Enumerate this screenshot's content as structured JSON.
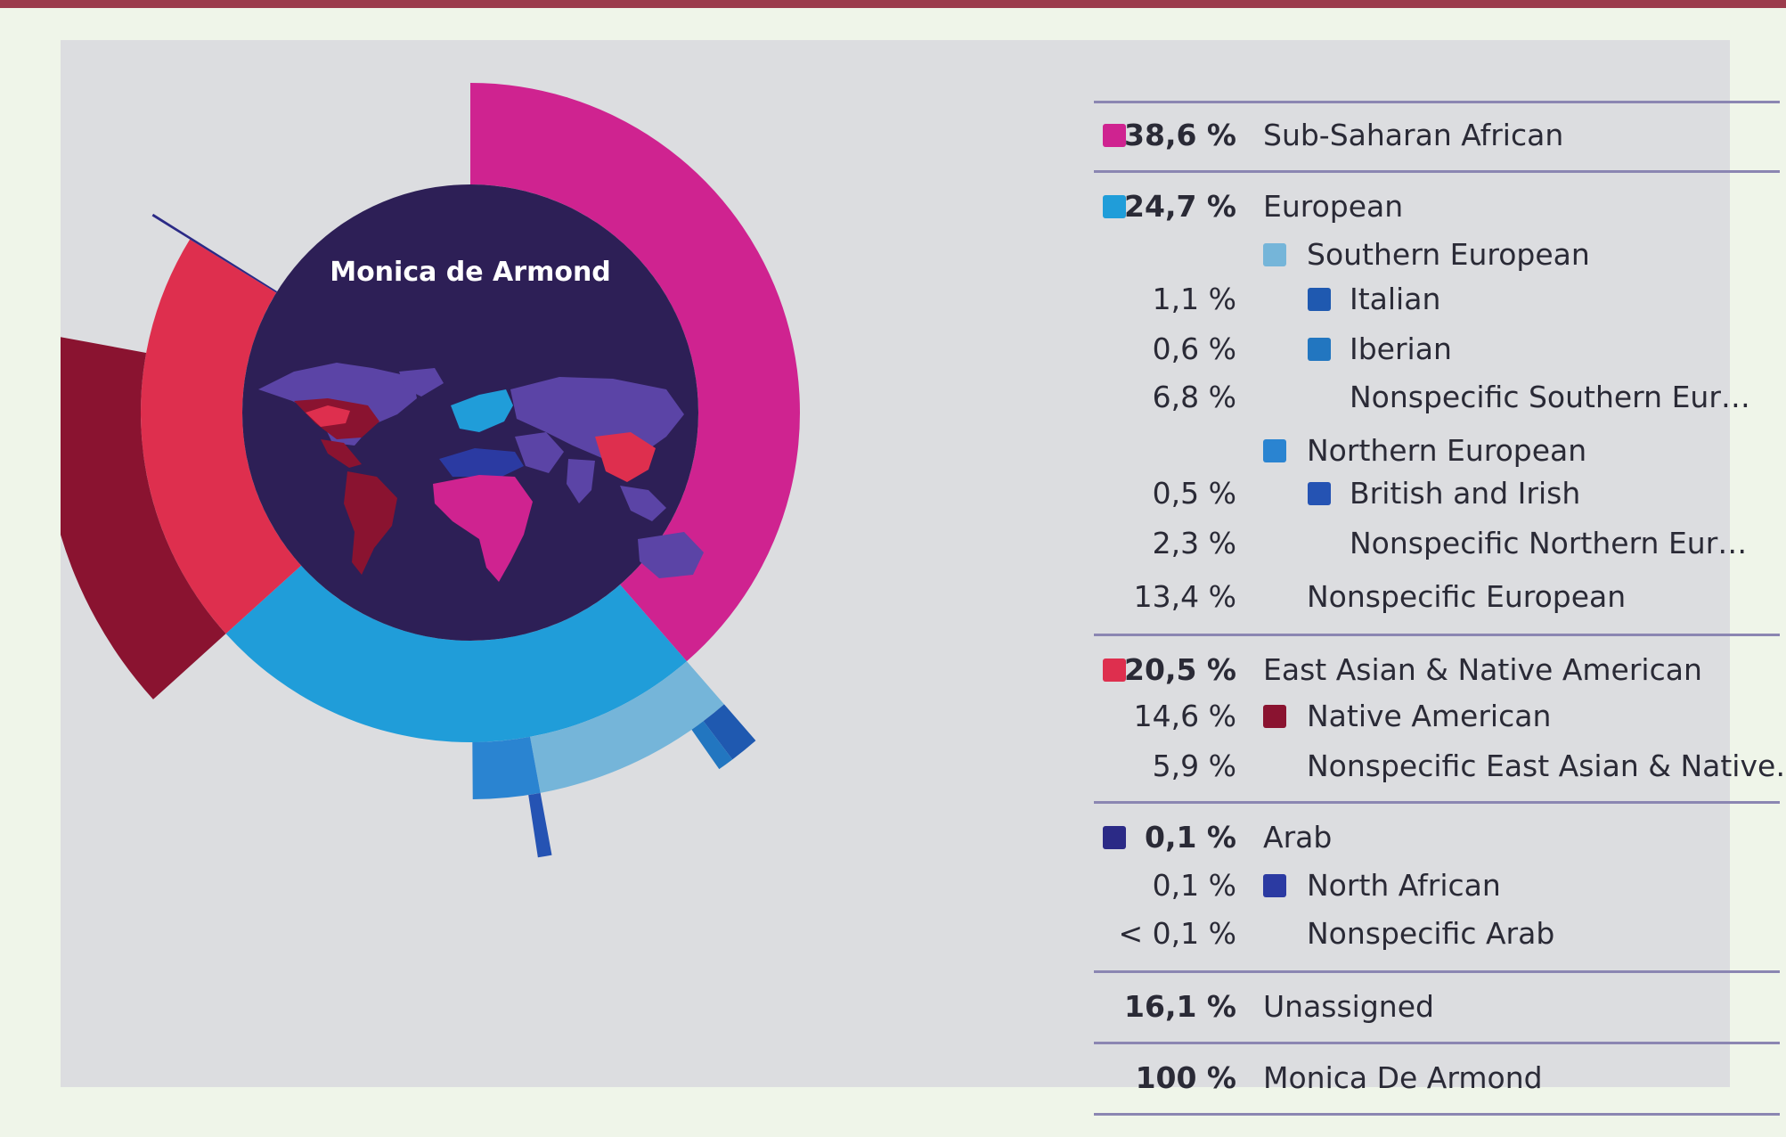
{
  "chart_data": {
    "type": "sunburst",
    "title": "Monica de Armond",
    "total": {
      "pct": "100 %",
      "label": "Monica De Armond"
    },
    "legend": [
      {
        "pct": "38,6 %",
        "label": "Sub-Saharan African",
        "level": 0,
        "color": "#cf2390"
      },
      {
        "pct": "24,7 %",
        "label": "European",
        "level": 0,
        "color": "#209dd9"
      },
      {
        "pct": "",
        "label": "Southern European",
        "level": 1,
        "color": "#75b5d9"
      },
      {
        "pct": "1,1 %",
        "label": "Italian",
        "level": 2,
        "color": "#1f59b0"
      },
      {
        "pct": "0,6 %",
        "label": "Iberian",
        "level": 2,
        "color": "#2276c0"
      },
      {
        "pct": "6,8 %",
        "label": "Nonspecific Southern Eur…",
        "level": 2,
        "color": ""
      },
      {
        "pct": "",
        "label": "Northern European",
        "level": 1,
        "color": "#2a84d1"
      },
      {
        "pct": "0,5 %",
        "label": "British and Irish",
        "level": 2,
        "color": "#2553b3"
      },
      {
        "pct": "2,3 %",
        "label": "Nonspecific Northern Eur…",
        "level": 2,
        "color": ""
      },
      {
        "pct": "13,4 %",
        "label": "Nonspecific European",
        "level": 1,
        "color": ""
      },
      {
        "pct": "20,5 %",
        "label": "East Asian & Native American",
        "level": 0,
        "color": "#de2f4e"
      },
      {
        "pct": "14,6 %",
        "label": "Native American",
        "level": 1,
        "color": "#8a1330"
      },
      {
        "pct": "5,9 %",
        "label": "Nonspecific East Asian & Native…",
        "level": 1,
        "color": ""
      },
      {
        "pct": "0,1 %",
        "label": "Arab",
        "level": 0,
        "color": "#2b2a86"
      },
      {
        "pct": "0,1 %",
        "label": "North African",
        "level": 1,
        "color": "#2b3aa2"
      },
      {
        "pct": "< 0,1 %",
        "label": "Nonspecific Arab",
        "level": 1,
        "color": ""
      },
      {
        "pct": "16,1 %",
        "label": "Unassigned",
        "level": 0,
        "color": ""
      }
    ],
    "ring1": [
      {
        "name": "Sub-Saharan African",
        "value": 38.6,
        "color": "#cf2390"
      },
      {
        "name": "European",
        "value": 24.7,
        "color": "#209dd9"
      },
      {
        "name": "East Asian & Native American",
        "value": 20.5,
        "color": "#de2f4e"
      },
      {
        "name": "Arab",
        "value": 0.1,
        "color": "#2b2a86"
      }
    ],
    "ring2": [
      {
        "name": "Southern European",
        "value": 8.5,
        "color": "#75b5d9"
      },
      {
        "name": "Northern European",
        "value": 2.8,
        "color": "#2a84d1"
      },
      {
        "name": "Native American",
        "value": 14.6,
        "color": "#8a1330"
      },
      {
        "name": "North African",
        "value": 0.1,
        "color": "#2b3aa2"
      }
    ],
    "ring3": [
      {
        "name": "Italian",
        "value": 1.1,
        "color": "#1f59b0"
      },
      {
        "name": "Iberian",
        "value": 0.6,
        "color": "#2276c0"
      },
      {
        "name": "British and Irish",
        "value": 0.5,
        "color": "#2553b3"
      }
    ],
    "colors": {
      "center": "#2d1f56",
      "continents": "#5b44a6",
      "background": "#dcdde0"
    }
  }
}
